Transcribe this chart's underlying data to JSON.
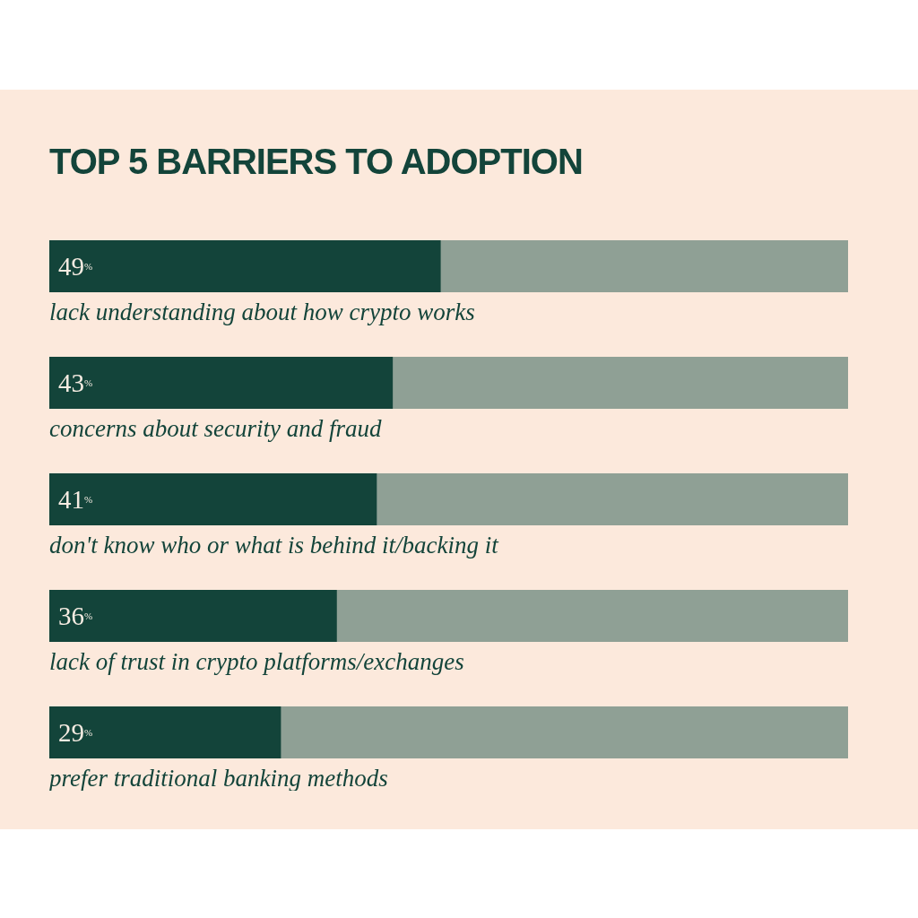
{
  "chart_data": {
    "type": "bar",
    "orientation": "horizontal",
    "title": "TOP 5 BARRIERS TO ADOPTION",
    "categories": [
      "lack understanding about how crypto works",
      "concerns about security and fraud",
      "don't know who or what is behind it/backing it",
      "lack of trust in crypto platforms/exchanges",
      "prefer traditional banking methods"
    ],
    "values": [
      49,
      43,
      41,
      36,
      29
    ],
    "value_labels": [
      "49$^{%}$",
      "43$^{%}$",
      "41$^{%}$",
      "36$^{%}$",
      "29$^{%}$"
    ],
    "color": "#13443a",
    "xlim": [
      0,
      100
    ]
  }
}
